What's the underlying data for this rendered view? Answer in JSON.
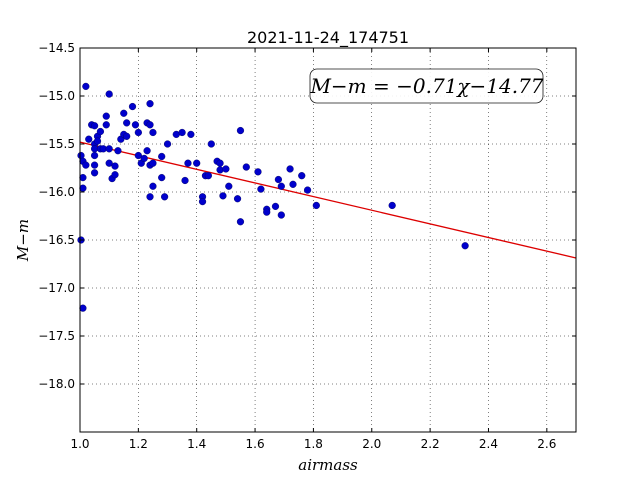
{
  "chart_data": {
    "type": "scatter",
    "title": "2021-11-24_174751",
    "xlabel": "airmass",
    "ylabel": "M−m",
    "annotation": "M−m = −0.71χ−14.77",
    "xlim": [
      1.0,
      2.7
    ],
    "ylim": [
      -18.5,
      -14.5
    ],
    "y_inverted": true,
    "grid": true,
    "grid_style": "dotted",
    "x_ticks": [
      1.0,
      1.2,
      1.4,
      1.6,
      1.8,
      2.0,
      2.2,
      2.4,
      2.6
    ],
    "x_tick_labels": [
      "1.0",
      "1.2",
      "1.4",
      "1.6",
      "1.8",
      "2.0",
      "2.2",
      "2.4",
      "2.6"
    ],
    "y_ticks": [
      -14.5,
      -15.0,
      -15.5,
      -16.0,
      -16.5,
      -17.0,
      -17.5,
      -18.0
    ],
    "y_tick_labels": [
      "−14.5",
      "−15.0",
      "−15.5",
      "−16.0",
      "−16.5",
      "−17.0",
      "−17.5",
      "−18.0"
    ],
    "fit_line": {
      "slope": -0.71,
      "intercept": -14.77,
      "color": "#dd0000"
    },
    "point_color": "#0000cc",
    "points": [
      [
        1.0,
        -16.5
      ],
      [
        1.01,
        -17.21
      ],
      [
        1.02,
        -14.9
      ],
      [
        1.0,
        -15.62
      ],
      [
        1.01,
        -15.68
      ],
      [
        1.02,
        -15.72
      ],
      [
        1.01,
        -15.85
      ],
      [
        1.01,
        -15.96
      ],
      [
        1.03,
        -15.45
      ],
      [
        1.04,
        -15.3
      ],
      [
        1.05,
        -15.31
      ],
      [
        1.05,
        -15.5
      ],
      [
        1.05,
        -15.55
      ],
      [
        1.05,
        -15.62
      ],
      [
        1.05,
        -15.72
      ],
      [
        1.05,
        -15.8
      ],
      [
        1.06,
        -15.42
      ],
      [
        1.06,
        -15.47
      ],
      [
        1.07,
        -15.37
      ],
      [
        1.07,
        -15.55
      ],
      [
        1.08,
        -15.55
      ],
      [
        1.09,
        -15.21
      ],
      [
        1.09,
        -15.3
      ],
      [
        1.1,
        -15.55
      ],
      [
        1.1,
        -15.7
      ],
      [
        1.1,
        -14.98
      ],
      [
        1.11,
        -15.86
      ],
      [
        1.12,
        -15.82
      ],
      [
        1.12,
        -15.73
      ],
      [
        1.13,
        -15.57
      ],
      [
        1.14,
        -15.45
      ],
      [
        1.15,
        -15.18
      ],
      [
        1.15,
        -15.4
      ],
      [
        1.16,
        -15.42
      ],
      [
        1.16,
        -15.28
      ],
      [
        1.18,
        -15.11
      ],
      [
        1.19,
        -15.3
      ],
      [
        1.2,
        -15.38
      ],
      [
        1.2,
        -15.62
      ],
      [
        1.21,
        -15.7
      ],
      [
        1.22,
        -15.65
      ],
      [
        1.23,
        -15.28
      ],
      [
        1.23,
        -15.57
      ],
      [
        1.24,
        -15.3
      ],
      [
        1.24,
        -15.08
      ],
      [
        1.24,
        -15.72
      ],
      [
        1.24,
        -16.05
      ],
      [
        1.25,
        -15.94
      ],
      [
        1.25,
        -15.7
      ],
      [
        1.25,
        -15.38
      ],
      [
        1.28,
        -15.63
      ],
      [
        1.28,
        -15.85
      ],
      [
        1.29,
        -16.05
      ],
      [
        1.3,
        -15.5
      ],
      [
        1.33,
        -15.4
      ],
      [
        1.35,
        -15.38
      ],
      [
        1.36,
        -15.88
      ],
      [
        1.37,
        -15.7
      ],
      [
        1.38,
        -15.4
      ],
      [
        1.4,
        -15.7
      ],
      [
        1.42,
        -16.05
      ],
      [
        1.42,
        -16.1
      ],
      [
        1.43,
        -15.83
      ],
      [
        1.44,
        -15.83
      ],
      [
        1.45,
        -15.5
      ],
      [
        1.47,
        -15.68
      ],
      [
        1.48,
        -15.77
      ],
      [
        1.48,
        -15.7
      ],
      [
        1.49,
        -16.04
      ],
      [
        1.5,
        -15.76
      ],
      [
        1.51,
        -15.94
      ],
      [
        1.54,
        -16.07
      ],
      [
        1.55,
        -15.36
      ],
      [
        1.55,
        -16.31
      ],
      [
        1.57,
        -15.74
      ],
      [
        1.61,
        -15.79
      ],
      [
        1.62,
        -15.97
      ],
      [
        1.64,
        -16.18
      ],
      [
        1.64,
        -16.21
      ],
      [
        1.67,
        -16.15
      ],
      [
        1.68,
        -15.87
      ],
      [
        1.69,
        -16.24
      ],
      [
        1.69,
        -15.94
      ],
      [
        1.72,
        -15.76
      ],
      [
        1.73,
        -15.92
      ],
      [
        1.76,
        -15.83
      ],
      [
        1.78,
        -15.98
      ],
      [
        1.81,
        -16.14
      ],
      [
        2.07,
        -16.14
      ],
      [
        2.32,
        -16.56
      ]
    ]
  }
}
